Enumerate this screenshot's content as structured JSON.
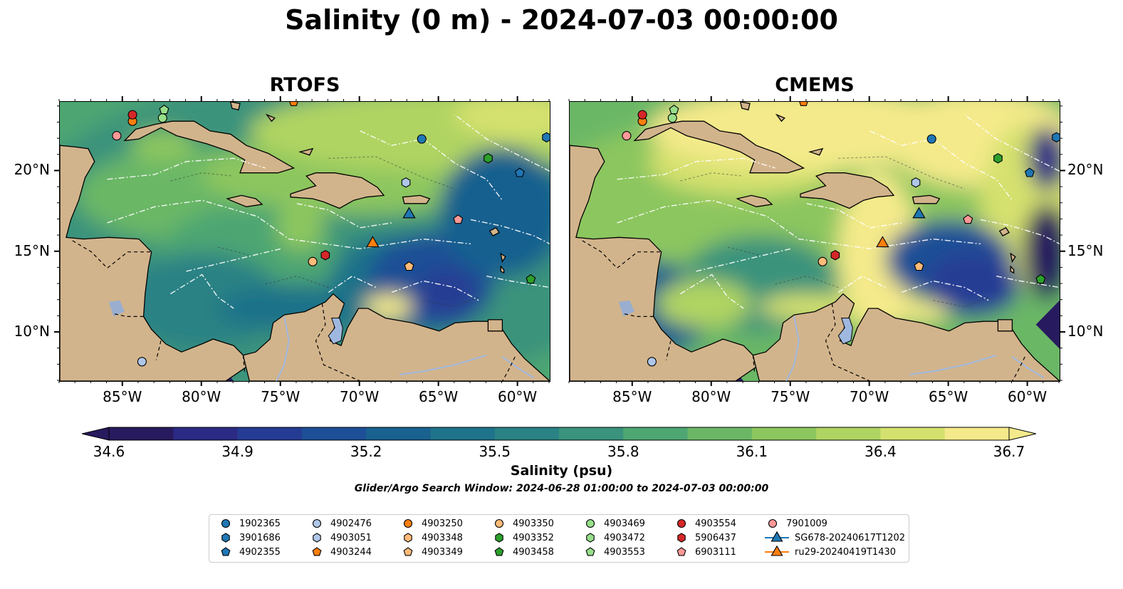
{
  "title": "Salinity (0 m) - 2024-07-03 00:00:00",
  "panels": [
    {
      "title": "RTOFS",
      "style": "rtofs"
    },
    {
      "title": "CMEMS",
      "style": "cmems"
    }
  ],
  "map_extent": {
    "lon": [
      -89,
      -58
    ],
    "lat": [
      7,
      24.3
    ]
  },
  "axes": {
    "lon_ticks": [
      "85°W",
      "80°W",
      "75°W",
      "70°W",
      "65°W",
      "60°W"
    ],
    "lat_ticks": [
      "20°N",
      "15°N",
      "10°N"
    ]
  },
  "land_color": "#d2b48c",
  "colorbar": {
    "label": "Salinity (psu)",
    "ticks": [
      "34.6",
      "34.9",
      "35.2",
      "35.5",
      "35.8",
      "36.1",
      "36.4",
      "36.7"
    ],
    "min": 34.6,
    "max": 36.7,
    "colors": [
      "#281a5e",
      "#2b2a84",
      "#253c94",
      "#1c4f96",
      "#19618f",
      "#1e7289",
      "#2a8284",
      "#3a937c",
      "#4ea672",
      "#6bb766",
      "#8cc65f",
      "#b0d462",
      "#d5e16e",
      "#f4ea8b"
    ]
  },
  "search_window": "Glider/Argo Search Window: 2024-06-28 01:00:00 to 2024-07-03 00:00:00",
  "legend": [
    {
      "label": "1902365",
      "color": "#1f77b4",
      "marker": "circle"
    },
    {
      "label": "3901686",
      "color": "#1f77b4",
      "marker": "hexagon"
    },
    {
      "label": "4902355",
      "color": "#1f77b4",
      "marker": "pentagon"
    },
    {
      "label": "4902476",
      "color": "#aec7e8",
      "marker": "circle"
    },
    {
      "label": "4903051",
      "color": "#aec7e8",
      "marker": "hexagon"
    },
    {
      "label": "4903244",
      "color": "#ff7f0e",
      "marker": "pentagon"
    },
    {
      "label": "4903250",
      "color": "#ff7f0e",
      "marker": "circle"
    },
    {
      "label": "4903348",
      "color": "#ffbb78",
      "marker": "hexagon"
    },
    {
      "label": "4903349",
      "color": "#ffbb78",
      "marker": "pentagon"
    },
    {
      "label": "4903350",
      "color": "#ffbb78",
      "marker": "circle"
    },
    {
      "label": "4903352",
      "color": "#2ca02c",
      "marker": "hexagon"
    },
    {
      "label": "4903458",
      "color": "#2ca02c",
      "marker": "pentagon"
    },
    {
      "label": "4903469",
      "color": "#98df8a",
      "marker": "circle"
    },
    {
      "label": "4903472",
      "color": "#98df8a",
      "marker": "hexagon"
    },
    {
      "label": "4903553",
      "color": "#98df8a",
      "marker": "pentagon"
    },
    {
      "label": "4903554",
      "color": "#d62728",
      "marker": "circle"
    },
    {
      "label": "5906437",
      "color": "#d62728",
      "marker": "hexagon"
    },
    {
      "label": "6903111",
      "color": "#ff9896",
      "marker": "pentagon"
    },
    {
      "label": "7901009",
      "color": "#ff9896",
      "marker": "circle"
    },
    {
      "label": "SG678-20240617T1202",
      "color": "#1f77b4",
      "marker": "triangle-line"
    },
    {
      "label": "ru29-20240419T1430",
      "color": "#ff7f0e",
      "marker": "triangle-line"
    }
  ],
  "observations": [
    {
      "id": "1902365",
      "lon": -66.1,
      "lat": 22.0
    },
    {
      "id": "3901686",
      "lon": -58.2,
      "lat": 22.1
    },
    {
      "id": "4902355",
      "lon": -59.9,
      "lat": 19.9
    },
    {
      "id": "4902476",
      "lon": -83.8,
      "lat": 8.2
    },
    {
      "id": "4903051",
      "lon": -67.1,
      "lat": 19.3
    },
    {
      "id": "4903244",
      "lon": -74.2,
      "lat": 24.3
    },
    {
      "id": "4903250",
      "lon": -84.4,
      "lat": 23.1
    },
    {
      "id": "4903349",
      "lon": -66.9,
      "lat": 14.1
    },
    {
      "id": "4903350",
      "lon": -73.0,
      "lat": 14.4
    },
    {
      "id": "4903352",
      "lon": -61.9,
      "lat": 20.8
    },
    {
      "id": "4903458",
      "lon": -59.2,
      "lat": 13.3
    },
    {
      "id": "4903469",
      "lon": -82.5,
      "lat": 23.3
    },
    {
      "id": "4903553",
      "lon": -82.4,
      "lat": 23.8
    },
    {
      "id": "4903554",
      "lon": -84.4,
      "lat": 23.5
    },
    {
      "id": "5906437",
      "lon": -72.2,
      "lat": 14.8
    },
    {
      "id": "6903111",
      "lon": -63.8,
      "lat": 17.0
    },
    {
      "id": "7901009",
      "lon": -85.4,
      "lat": 22.2
    },
    {
      "id": "SG678-20240617T1202",
      "lon": -66.9,
      "lat": 17.4
    },
    {
      "id": "ru29-20240419T1430",
      "lon": -69.2,
      "lat": 15.6
    }
  ]
}
